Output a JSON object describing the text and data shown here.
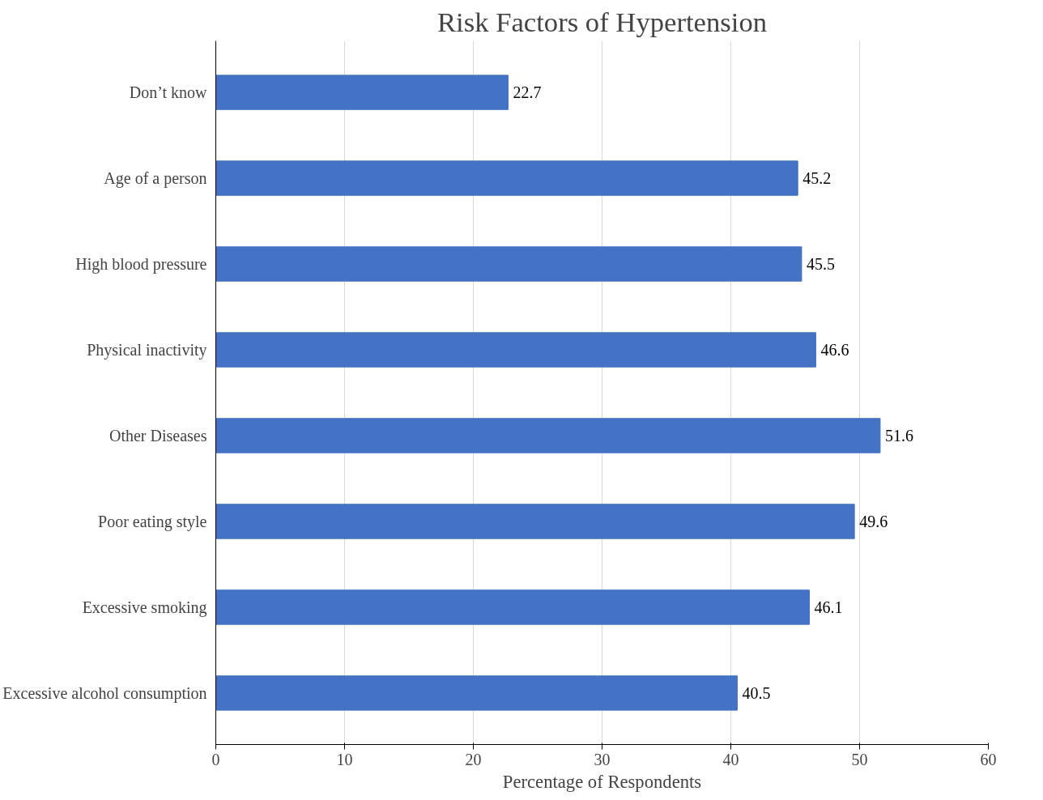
{
  "chart_data": {
    "type": "bar",
    "orientation": "horizontal",
    "title": "Risk Factors of Hypertension",
    "xlabel": "Percentage of Respondents",
    "categories": [
      "Don’t know",
      "Age of a person",
      "High blood pressure",
      "Physical inactivity",
      "Other Diseases",
      "Poor eating style",
      "Excessive smoking",
      "Excessive alcohol consumption"
    ],
    "values": [
      22.7,
      45.2,
      45.5,
      46.6,
      51.6,
      49.6,
      46.1,
      40.5
    ],
    "color": "#4472c4",
    "xlim": [
      0,
      60
    ],
    "xticks": [
      0,
      10,
      20,
      30,
      40,
      50,
      60
    ],
    "grid": "x",
    "data_labels": true
  }
}
